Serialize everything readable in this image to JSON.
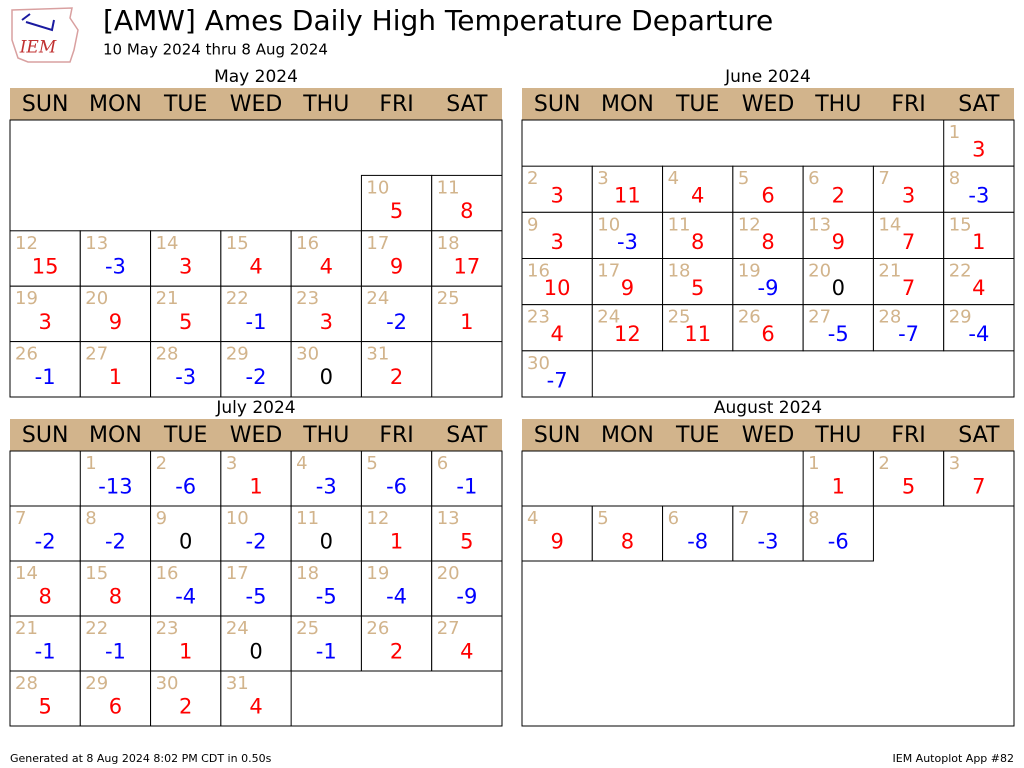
{
  "header": {
    "title": "[AMW] Ames Daily High Temperature Departure",
    "subtitle": "10 May 2024 thru 8 Aug 2024",
    "logo_text": "IEM"
  },
  "weekdays": [
    "SUN",
    "MON",
    "TUE",
    "WED",
    "THU",
    "FRI",
    "SAT"
  ],
  "colors": {
    "positive": "#ff0000",
    "negative": "#0000ff",
    "zero": "#000000",
    "day_number": "#d2b48c",
    "header_fill": "#d2b48c"
  },
  "months": [
    {
      "title": "May 2024",
      "days": [
        10,
        11,
        12,
        13,
        14,
        15,
        16,
        17,
        18,
        19,
        20,
        21,
        22,
        23,
        24,
        25,
        26,
        27,
        28,
        29,
        30,
        31
      ],
      "values": [
        5,
        8,
        15,
        -3,
        3,
        4,
        4,
        9,
        17,
        3,
        9,
        5,
        -1,
        3,
        -2,
        1,
        -1,
        1,
        -3,
        -2,
        0,
        2
      ]
    },
    {
      "title": "June 2024",
      "days": [
        1,
        2,
        3,
        4,
        5,
        6,
        7,
        8,
        9,
        10,
        11,
        12,
        13,
        14,
        15,
        16,
        17,
        18,
        19,
        20,
        21,
        22,
        23,
        24,
        25,
        26,
        27,
        28,
        29,
        30
      ],
      "values": [
        3,
        3,
        11,
        4,
        6,
        2,
        3,
        -3,
        3,
        -3,
        8,
        8,
        9,
        7,
        1,
        10,
        9,
        5,
        -9,
        0,
        7,
        4,
        4,
        12,
        11,
        6,
        -5,
        -7,
        -4,
        -7
      ]
    },
    {
      "title": "July 2024",
      "days": [
        1,
        2,
        3,
        4,
        5,
        6,
        7,
        8,
        9,
        10,
        11,
        12,
        13,
        14,
        15,
        16,
        17,
        18,
        19,
        20,
        21,
        22,
        23,
        24,
        25,
        26,
        27,
        28,
        29,
        30,
        31
      ],
      "values": [
        -13,
        -6,
        1,
        -3,
        -6,
        -1,
        -2,
        -2,
        0,
        -2,
        0,
        1,
        5,
        8,
        8,
        -4,
        -5,
        -5,
        -4,
        -9,
        -1,
        -1,
        1,
        0,
        -1,
        2,
        4,
        5,
        6,
        2,
        4
      ]
    },
    {
      "title": "August 2024",
      "days": [
        1,
        2,
        3,
        4,
        5,
        6,
        7,
        8
      ],
      "values": [
        1,
        5,
        7,
        9,
        8,
        -8,
        -3,
        -6
      ]
    }
  ],
  "footer": {
    "left": "Generated at 8 Aug 2024 8:02 PM CDT in 0.50s",
    "right": "IEM Autoplot App #82"
  }
}
